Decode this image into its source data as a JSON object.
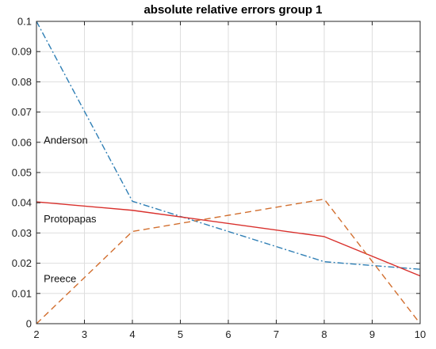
{
  "chart_data": {
    "type": "line",
    "title": "absolute relative errors group 1",
    "xlabel": "",
    "ylabel": "",
    "xlim": [
      2,
      10
    ],
    "ylim": [
      0,
      0.1
    ],
    "grid": true,
    "xticks": [
      2,
      3,
      4,
      5,
      6,
      7,
      8,
      9,
      10
    ],
    "yticks": [
      0,
      0.01,
      0.02,
      0.03,
      0.04,
      0.05,
      0.06,
      0.07,
      0.08,
      0.09,
      0.1
    ],
    "series": [
      {
        "name": "Anderson",
        "style": "dashdot",
        "color": "#2f7fb5",
        "x": [
          2,
          4,
          8,
          10
        ],
        "y": [
          0.1,
          0.0405,
          0.0205,
          0.018
        ]
      },
      {
        "name": "Protopapas",
        "style": "solid",
        "color": "#d9302c",
        "x": [
          2,
          4,
          8,
          10
        ],
        "y": [
          0.0403,
          0.0375,
          0.0288,
          0.0158
        ]
      },
      {
        "name": "Preece",
        "style": "dashed",
        "color": "#d26f2f",
        "x": [
          2,
          4,
          8,
          10
        ],
        "y": [
          0.0,
          0.0305,
          0.0412,
          0.0
        ]
      }
    ],
    "annotations": [
      {
        "text": "Anderson",
        "x": 2.15,
        "y": 0.0595
      },
      {
        "text": "Protopapas",
        "x": 2.15,
        "y": 0.0335
      },
      {
        "text": "Preece",
        "x": 2.15,
        "y": 0.0138
      }
    ]
  }
}
